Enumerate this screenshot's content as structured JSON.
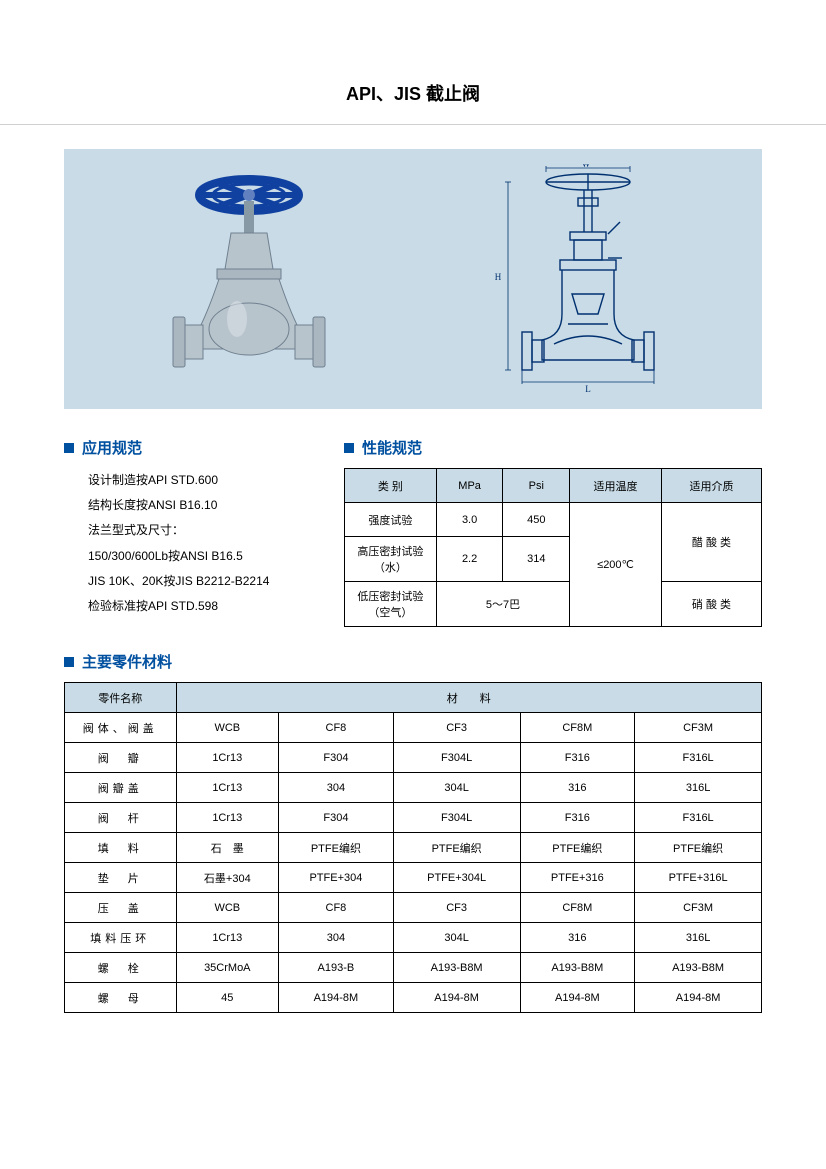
{
  "page": {
    "title": "API、JIS 截止阀",
    "background_color": "#ffffff",
    "hero_bg": "#c8dbe6",
    "accent_color": "#0050a0",
    "border_color": "#000000"
  },
  "sections": {
    "application": {
      "title": "应用规范",
      "items": [
        "设计制造按API STD.600",
        "结构长度按ANSI B16.10",
        "法兰型式及尺寸：",
        "150/300/600Lb按ANSI B16.5",
        "JIS 10K、20K按JIS B2212-B2214",
        "检验标准按API STD.598"
      ]
    },
    "performance": {
      "title": "性能规范",
      "headers": [
        "类  别",
        "MPa",
        "Psi",
        "适用温度",
        "适用介质"
      ],
      "rows": {
        "r1_label": "强度试验",
        "r1_mpa": "3.0",
        "r1_psi": "450",
        "temp": "≤200℃",
        "medium1": "醋 酸 类",
        "r2_label": "高压密封试验\n（水）",
        "r2_mpa": "2.2",
        "r2_psi": "314",
        "r3_label": "低压密封试验\n（空气）",
        "r3_val": "5～7巴",
        "medium2": "硝 酸 类"
      }
    },
    "materials": {
      "title": "主要零件材料",
      "header_part": "零件名称",
      "header_mat": "材　　料",
      "rows": [
        [
          "阀体、阀盖",
          "WCB",
          "CF8",
          "CF3",
          "CF8M",
          "CF3M"
        ],
        [
          "阀　瓣",
          "1Cr13",
          "F304",
          "F304L",
          "F316",
          "F316L"
        ],
        [
          "阀瓣盖",
          "1Cr13",
          "304",
          "304L",
          "316",
          "316L"
        ],
        [
          "阀　杆",
          "1Cr13",
          "F304",
          "F304L",
          "F316",
          "F316L"
        ],
        [
          "填　料",
          "石　墨",
          "PTFE编织",
          "PTFE编织",
          "PTFE编织",
          "PTFE编织"
        ],
        [
          "垫　片",
          "石墨+304",
          "PTFE+304",
          "PTFE+304L",
          "PTFE+316",
          "PTFE+316L"
        ],
        [
          "压　盖",
          "WCB",
          "CF8",
          "CF3",
          "CF8M",
          "CF3M"
        ],
        [
          "填料压环",
          "1Cr13",
          "304",
          "304L",
          "316",
          "316L"
        ],
        [
          "螺　栓",
          "35CrMoA",
          "A193-B",
          "A193-B8M",
          "A193-B8M",
          "A193-B8M"
        ],
        [
          "螺　母",
          "45",
          "A194-8M",
          "A194-8M",
          "A194-8M",
          "A194-8M"
        ]
      ]
    }
  },
  "valve_photo": {
    "handwheel_color": "#1040a0",
    "body_color": "#b8c4cc",
    "stem_color": "#8899a6"
  },
  "valve_diagram": {
    "line_color": "#003070",
    "labels": {
      "w": "W",
      "h": "H",
      "l": "L"
    }
  }
}
